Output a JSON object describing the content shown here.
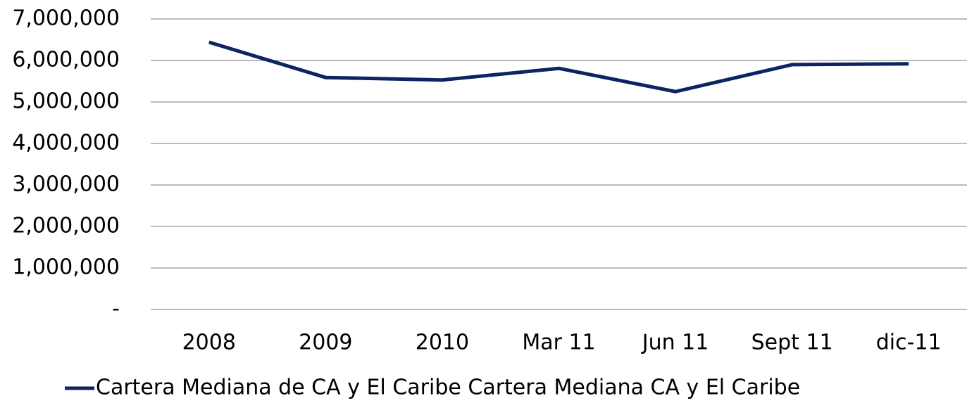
{
  "chart_data": {
    "type": "line",
    "categories": [
      "2008",
      "2009",
      "2010",
      "Mar 11",
      "Jun 11",
      "Sept 11",
      "dic-11"
    ],
    "series": [
      {
        "name": "Cartera Mediana de CA y El Caribe Cartera Mediana CA y El Caribe",
        "color": "#0d2463",
        "values": [
          6440000,
          5590000,
          5530000,
          5810000,
          5250000,
          5900000,
          5920000
        ]
      }
    ],
    "ylim": [
      0,
      7000000
    ],
    "yticks": [
      {
        "value": 0,
        "label": "-"
      },
      {
        "value": 1000000,
        "label": "1,000,000"
      },
      {
        "value": 2000000,
        "label": "2,000,000"
      },
      {
        "value": 3000000,
        "label": "3,000,000"
      },
      {
        "value": 4000000,
        "label": "4,000,000"
      },
      {
        "value": 5000000,
        "label": "5,000,000"
      },
      {
        "value": 6000000,
        "label": "6,000,000"
      },
      {
        "value": 7000000,
        "label": "7,000,000"
      }
    ],
    "grid": true,
    "legend": "bottom"
  }
}
